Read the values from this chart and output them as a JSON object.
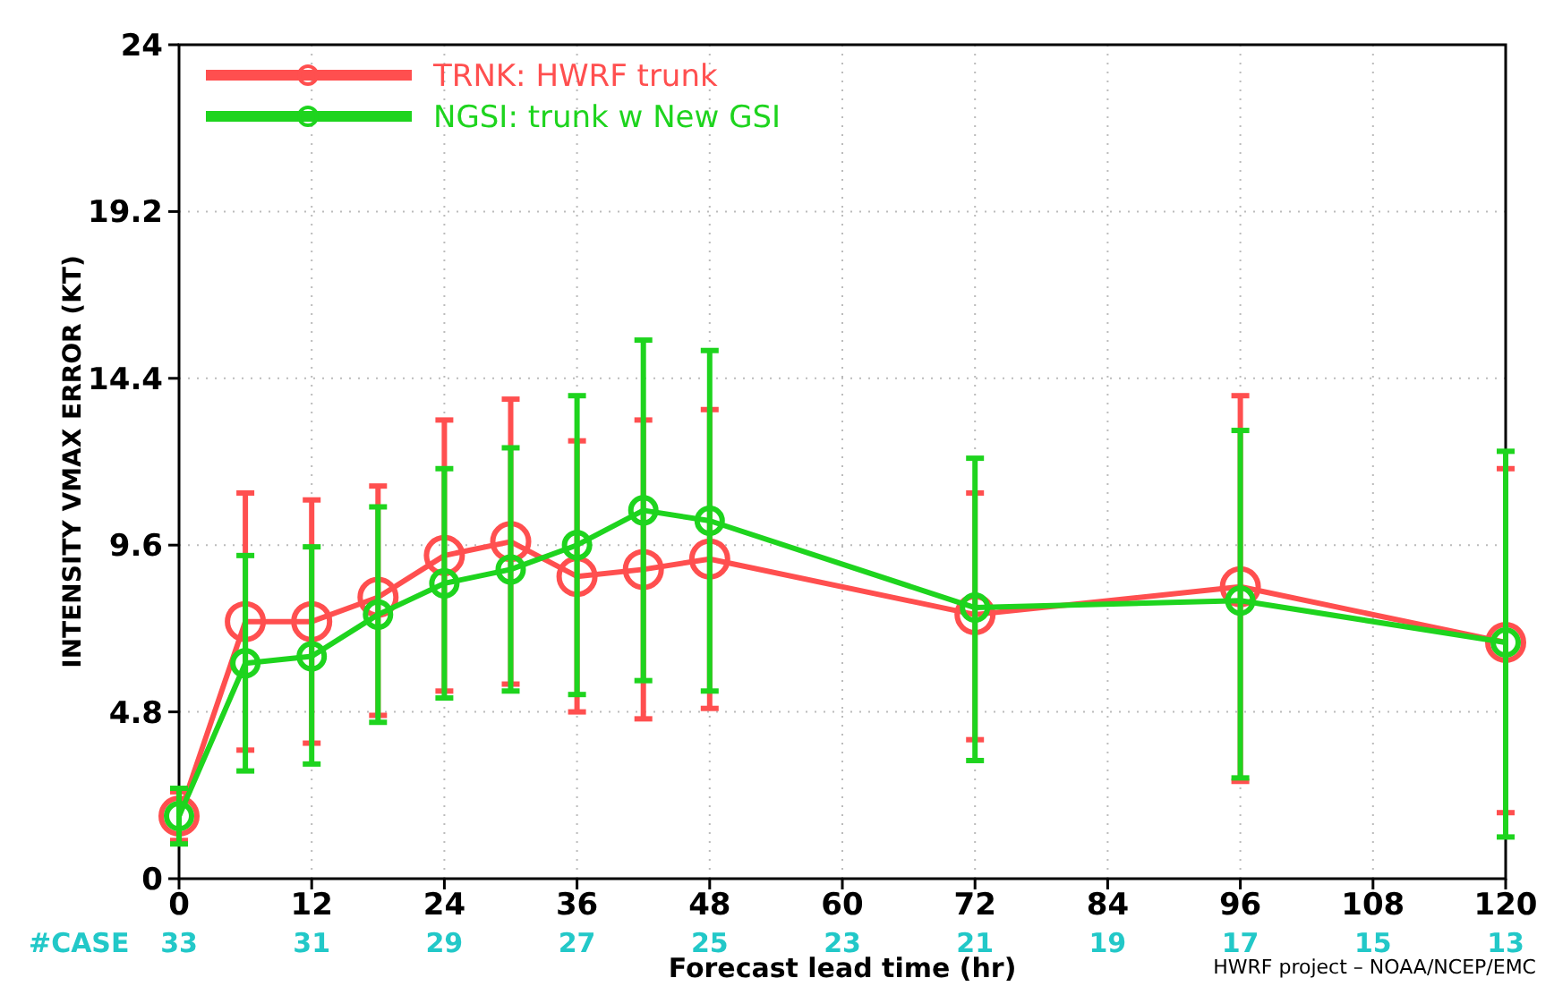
{
  "chart_data": {
    "type": "line",
    "xlabel": "Forecast lead time (hr)",
    "ylabel": "INTENSITY VMAX ERROR (KT)",
    "x": [
      0,
      6,
      12,
      18,
      24,
      30,
      36,
      42,
      48,
      72,
      96,
      120
    ],
    "xlim": [
      0,
      120
    ],
    "xticks": [
      0,
      12,
      24,
      36,
      48,
      60,
      72,
      84,
      96,
      108,
      120
    ],
    "ylim": [
      0,
      24
    ],
    "yticks": [
      0,
      4.8,
      9.6,
      14.4,
      19.2,
      24
    ],
    "grid": true,
    "legend": "top left",
    "marker": "circle",
    "line_style": "solid",
    "series": [
      {
        "name": "TRNK: HWRF trunk",
        "color": "#ff4f4f",
        "values": [
          1.8,
          7.4,
          7.4,
          8.1,
          9.3,
          9.7,
          8.7,
          8.9,
          9.2,
          7.6,
          8.4,
          6.8
        ],
        "errors": [
          [
            1.1,
            2.5
          ],
          [
            3.7,
            11.1
          ],
          [
            3.9,
            10.9
          ],
          [
            4.7,
            11.3
          ],
          [
            5.4,
            13.2
          ],
          [
            5.6,
            13.8
          ],
          [
            4.8,
            12.6
          ],
          [
            4.6,
            13.2
          ],
          [
            4.9,
            13.5
          ],
          [
            4.0,
            11.1
          ],
          [
            2.8,
            13.9
          ],
          [
            1.9,
            11.8
          ]
        ]
      },
      {
        "name": "NGSI: trunk w New GSI",
        "color": "#1ed41e",
        "values": [
          1.8,
          6.2,
          6.4,
          7.6,
          8.5,
          8.9,
          9.6,
          10.6,
          10.3,
          7.8,
          8.0,
          6.8
        ],
        "errors": [
          [
            1.0,
            2.6
          ],
          [
            3.1,
            9.3
          ],
          [
            3.3,
            9.55
          ],
          [
            4.5,
            10.7
          ],
          [
            5.2,
            11.8
          ],
          [
            5.4,
            12.4
          ],
          [
            5.3,
            13.9
          ],
          [
            5.7,
            15.5
          ],
          [
            5.4,
            15.2
          ],
          [
            3.4,
            12.1
          ],
          [
            2.9,
            12.9
          ],
          [
            1.2,
            12.3
          ]
        ]
      }
    ],
    "annotations": [
      "#CASE",
      "33",
      "31",
      "29",
      "27",
      "25",
      "23",
      "21",
      "19",
      "17",
      "15",
      "13",
      "HWRF project – NOAA/NCEP/EMC"
    ]
  }
}
